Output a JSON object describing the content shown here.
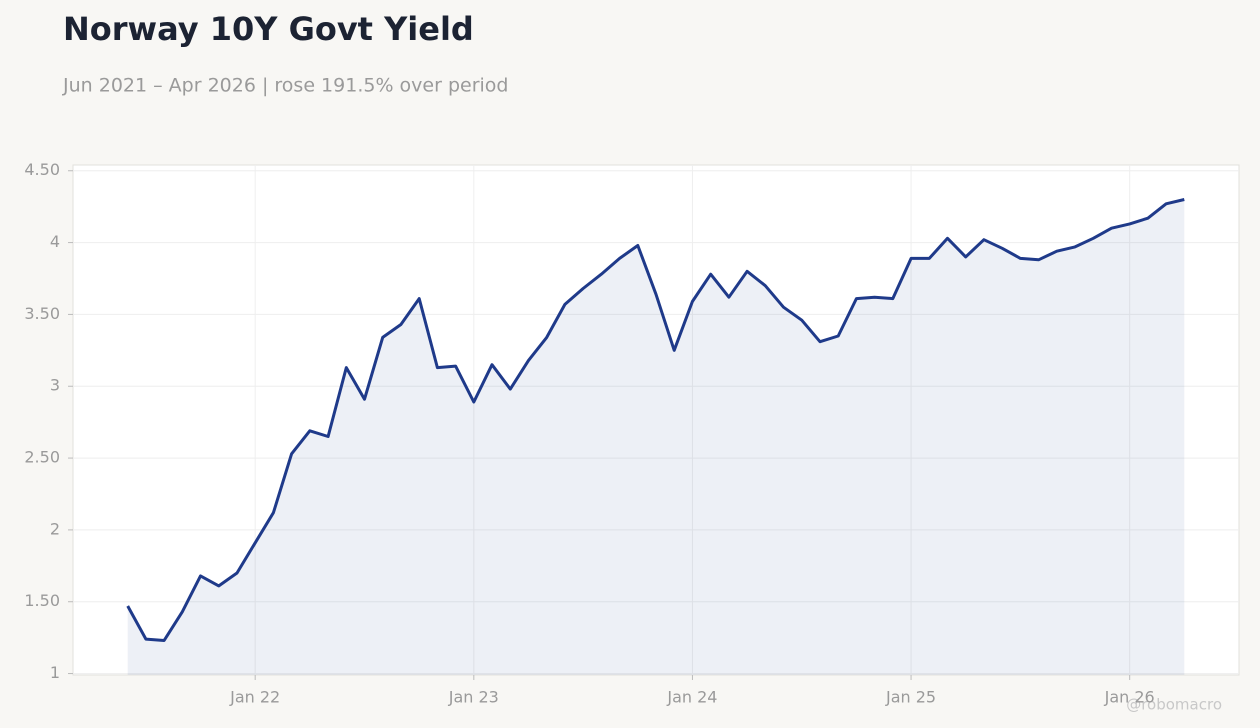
{
  "chart_data": {
    "type": "line",
    "title": "Norway 10Y Govt Yield",
    "subtitle": "Jun 2021 – Apr 2026 | rose 191.5% over period",
    "watermark": "@robomacro",
    "x": [
      "2021-06",
      "2021-07",
      "2021-08",
      "2021-09",
      "2021-10",
      "2021-11",
      "2021-12",
      "2022-01",
      "2022-02",
      "2022-03",
      "2022-04",
      "2022-05",
      "2022-06",
      "2022-07",
      "2022-08",
      "2022-09",
      "2022-10",
      "2022-11",
      "2022-12",
      "2023-01",
      "2023-02",
      "2023-03",
      "2023-04",
      "2023-05",
      "2023-06",
      "2023-07",
      "2023-08",
      "2023-09",
      "2023-10",
      "2023-11",
      "2023-12",
      "2024-01",
      "2024-02",
      "2024-03",
      "2024-04",
      "2024-05",
      "2024-06",
      "2024-07",
      "2024-08",
      "2024-09",
      "2024-10",
      "2024-11",
      "2024-12",
      "2025-01",
      "2025-02",
      "2025-03",
      "2025-04",
      "2025-05",
      "2025-06",
      "2025-07",
      "2025-08",
      "2025-09",
      "2025-10",
      "2025-11",
      "2025-12",
      "2026-01",
      "2026-02",
      "2026-03",
      "2026-04"
    ],
    "series": [
      {
        "name": "Norway 10Y Govt Yield",
        "color": "#1f3a8a",
        "values": [
          1.47,
          1.24,
          1.23,
          1.43,
          1.68,
          1.61,
          1.7,
          1.91,
          2.12,
          2.53,
          2.69,
          2.65,
          3.13,
          2.91,
          3.34,
          3.43,
          3.61,
          3.13,
          3.14,
          2.89,
          3.15,
          2.98,
          3.18,
          3.34,
          3.57,
          3.68,
          3.78,
          3.89,
          3.98,
          3.64,
          3.25,
          3.59,
          3.78,
          3.62,
          3.8,
          3.7,
          3.55,
          3.46,
          3.31,
          3.35,
          3.61,
          3.62,
          3.61,
          3.89,
          3.89,
          4.03,
          3.9,
          4.02,
          3.96,
          3.89,
          3.88,
          3.94,
          3.97,
          4.03,
          4.1,
          4.13,
          4.17,
          4.27,
          4.3
        ]
      }
    ],
    "xlim": [
      "2021-03",
      "2026-07"
    ],
    "xticks": [
      {
        "value": "2022-01",
        "label": "Jan 22"
      },
      {
        "value": "2023-01",
        "label": "Jan 23"
      },
      {
        "value": "2024-01",
        "label": "Jan 24"
      },
      {
        "value": "2025-01",
        "label": "Jan 25"
      },
      {
        "value": "2026-01",
        "label": "Jan 26"
      }
    ],
    "ylim": [
      0.99,
      4.54
    ],
    "yticks": [
      1,
      {
        "value": 1.5,
        "label": "1.50"
      },
      2,
      {
        "value": 2.5,
        "label": "2.50"
      },
      3,
      {
        "value": 3.5,
        "label": "3.50"
      },
      4,
      {
        "value": 4.5,
        "label": "4.50"
      }
    ],
    "grid": true
  }
}
